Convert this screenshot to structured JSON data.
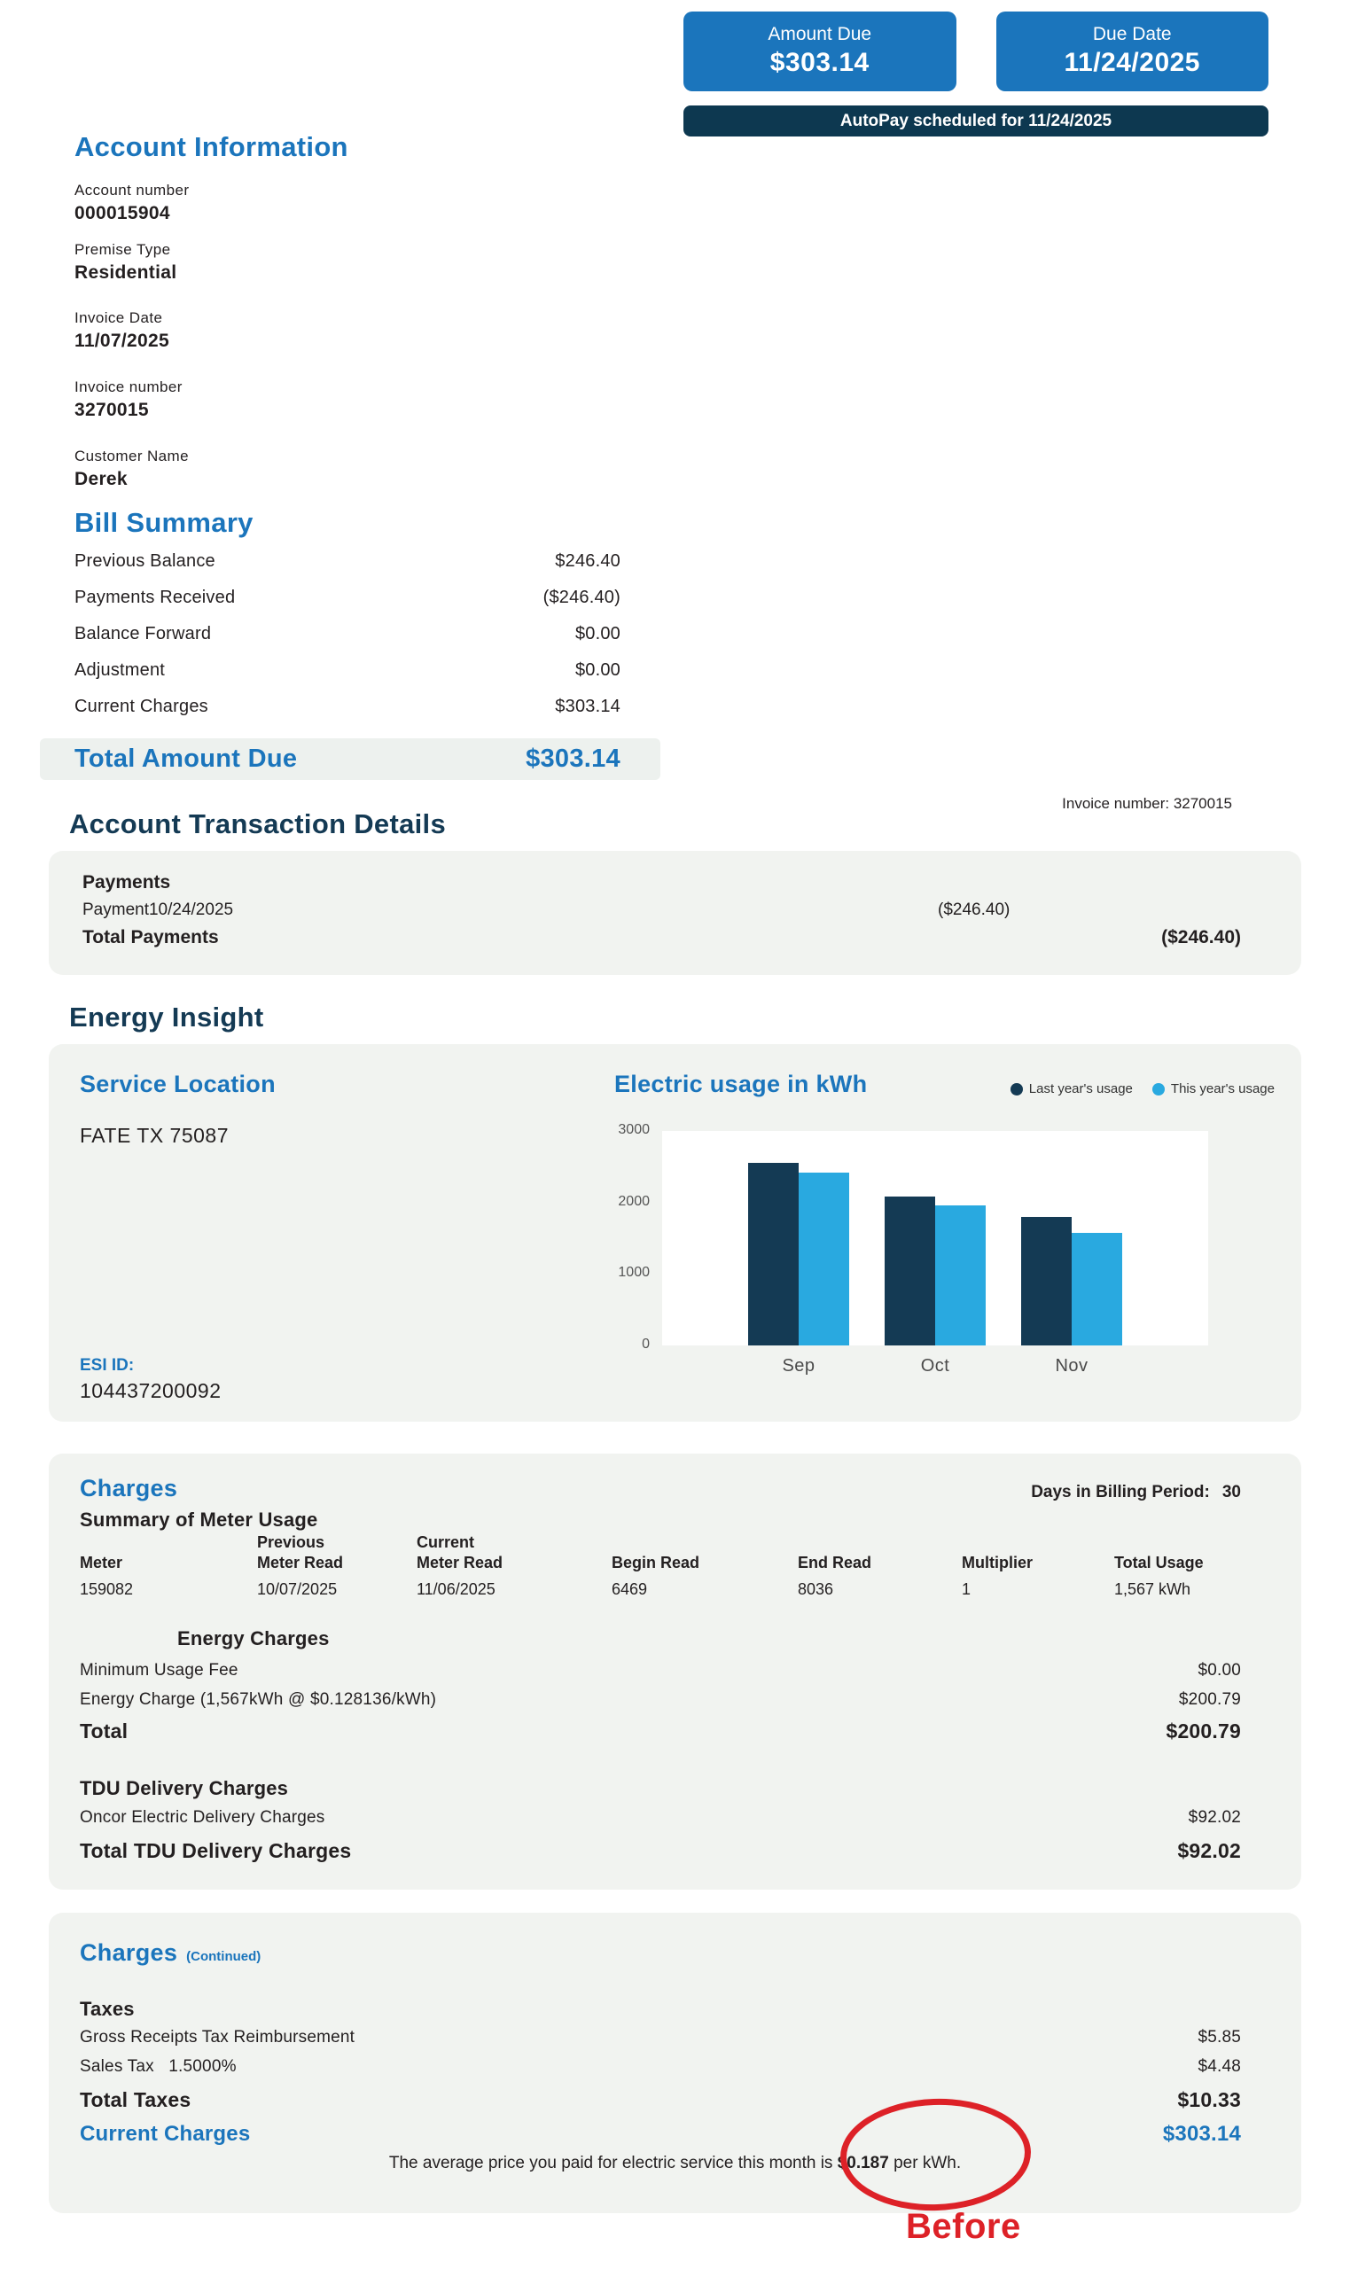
{
  "colors": {
    "primary_blue": "#1B75BC",
    "navy": "#143A54",
    "navy_banner": "#0D3850",
    "light_blue": "#29A9E0",
    "card_background": "#F1F3F0",
    "total_band_background": "#EDF1EE",
    "annotation_red": "#DD2127"
  },
  "header": {
    "amount_due_label": "Amount Due",
    "amount_due_value": "$303.14",
    "due_date_label": "Due Date",
    "due_date_value": "11/24/2025",
    "autopay_banner": "AutoPay scheduled for 11/24/2025"
  },
  "account_information": {
    "title": "Account Information",
    "fields": [
      {
        "label": "Account number",
        "value": "000015904"
      },
      {
        "label": "Premise Type",
        "value": "Residential"
      },
      {
        "label": "Invoice Date",
        "value": "11/07/2025"
      },
      {
        "label": "Invoice number",
        "value": "3270015"
      },
      {
        "label": "Customer Name",
        "value": "Derek"
      }
    ]
  },
  "bill_summary": {
    "title": "Bill Summary",
    "rows": [
      {
        "label": "Previous Balance",
        "value": "$246.40"
      },
      {
        "label": "Payments Received",
        "value": "($246.40)"
      },
      {
        "label": "Balance Forward",
        "value": "$0.00"
      },
      {
        "label": "Adjustment",
        "value": "$0.00"
      },
      {
        "label": "Current Charges",
        "value": "$303.14"
      }
    ],
    "total_label": "Total Amount Due",
    "total_value": "$303.14"
  },
  "transaction_details": {
    "invoice_number_note": "Invoice number: 3270015",
    "title": "Account Transaction Details",
    "payments_heading": "Payments",
    "payment_label": "Payment10/24/2025",
    "payment_value": "($246.40)",
    "total_label": "Total Payments",
    "total_value": "($246.40)"
  },
  "energy_insight": {
    "title": "Energy Insight",
    "service_location_title": "Service Location",
    "address": "FATE TX 75087",
    "esi_label": "ESI ID:",
    "esi_value": "104437200092",
    "chart_title": "Electric usage in kWh"
  },
  "chart_data": {
    "type": "bar",
    "title": "Electric usage in kWh",
    "categories": [
      "Sep",
      "Oct",
      "Nov"
    ],
    "series": [
      {
        "name": "Last year's usage",
        "color": "#143A54",
        "values": [
          2550,
          2080,
          1800
        ]
      },
      {
        "name": "This year's usage",
        "color": "#29A9E0",
        "values": [
          2420,
          1960,
          1580
        ]
      }
    ],
    "ylabel": "kWh",
    "ylim": [
      0,
      3000
    ],
    "yticks": [
      0,
      1000,
      2000,
      3000
    ],
    "grid": false,
    "legend_position": "top-right"
  },
  "charges": {
    "title": "Charges",
    "billing_period_label": "Days in Billing Period:",
    "billing_period_value": "30",
    "meter_usage_title": "Summary of Meter Usage",
    "table": {
      "columns": [
        {
          "line1": "",
          "line2": "Meter"
        },
        {
          "line1": "Previous",
          "line2": "Meter Read"
        },
        {
          "line1": "Current",
          "line2": "Meter Read"
        },
        {
          "line1": "",
          "line2": "Begin Read"
        },
        {
          "line1": "",
          "line2": "End Read"
        },
        {
          "line1": "",
          "line2": "Multiplier"
        },
        {
          "line1": "",
          "line2": "Total Usage"
        }
      ],
      "row": [
        "159082",
        "10/07/2025",
        "11/06/2025",
        "6469",
        "8036",
        "1",
        "1,567 kWh"
      ]
    },
    "energy_charges_title": "Energy Charges",
    "energy_rows": [
      {
        "label": "Minimum Usage Fee",
        "value": "$0.00"
      },
      {
        "label": "Energy Charge (1,567kWh @ $0.128136/kWh)",
        "value": "$200.79"
      }
    ],
    "energy_total_label": "Total",
    "energy_total_value": "$200.79",
    "tdu_title": "TDU Delivery Charges",
    "tdu_rows": [
      {
        "label": "Oncor Electric Delivery Charges",
        "value": "$92.02"
      }
    ],
    "tdu_total_label": "Total TDU Delivery Charges",
    "tdu_total_value": "$92.02"
  },
  "charges_continued": {
    "title": "Charges",
    "continued_label": "(Continued)",
    "taxes_title": "Taxes",
    "tax_rows": [
      {
        "label": "Gross Receipts Tax Reimbursement",
        "value": "$5.85"
      },
      {
        "label": "Sales Tax   1.5000%",
        "value": "$4.48"
      }
    ],
    "total_taxes_label": "Total Taxes",
    "total_taxes_value": "$10.33",
    "current_charges_label": "Current Charges",
    "current_charges_value": "$303.14",
    "avg_price_prefix": "The average price you paid for electric service this month is ",
    "avg_price_value": "$0.187",
    "avg_price_suffix": " per kWh.",
    "annotation_text": "Before"
  }
}
